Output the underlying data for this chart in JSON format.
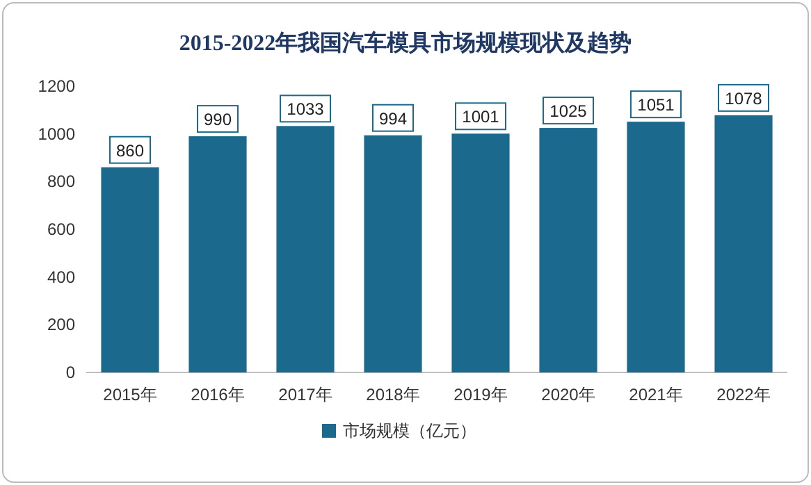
{
  "chart_data": {
    "type": "bar",
    "title": "2015-2022年我国汽车模具市场规模现状及趋势",
    "categories": [
      "2015年",
      "2016年",
      "2017年",
      "2018年",
      "2019年",
      "2020年",
      "2021年",
      "2022年"
    ],
    "series": [
      {
        "name": "市场规模（亿元）",
        "color": "#1b6a8d",
        "values": [
          860,
          990,
          1033,
          994,
          1001,
          1025,
          1051,
          1078
        ]
      }
    ],
    "ylim": [
      0,
      1200
    ],
    "yticks": [
      0,
      200,
      400,
      600,
      800,
      1000,
      1200
    ],
    "data_labels": true,
    "legend": "bottom"
  }
}
